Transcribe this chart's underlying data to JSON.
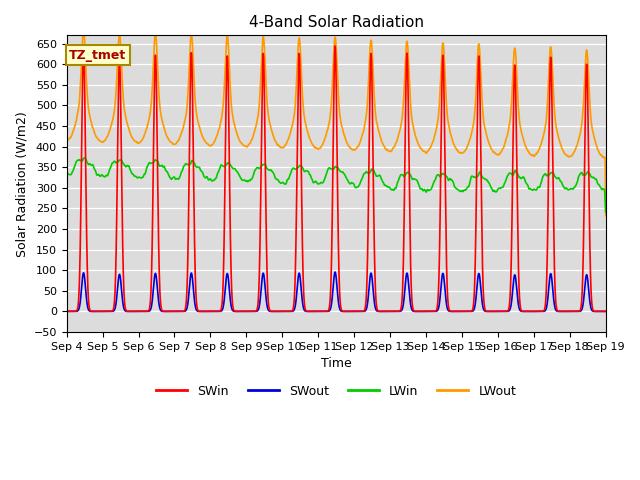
{
  "title": "4-Band Solar Radiation",
  "xlabel": "Time",
  "ylabel": "Solar Radiation (W/m2)",
  "ylim": [
    -50,
    670
  ],
  "yticks": [
    -50,
    0,
    50,
    100,
    150,
    200,
    250,
    300,
    350,
    400,
    450,
    500,
    550,
    600,
    650
  ],
  "bg_color": "#dcdcdc",
  "fig_color": "#ffffff",
  "line_colors": {
    "SWin": "#ff0000",
    "SWout": "#0000dd",
    "LWin": "#00cc00",
    "LWout": "#ff9900"
  },
  "line_widths": {
    "SWin": 1.2,
    "SWout": 1.2,
    "LWin": 1.2,
    "LWout": 1.2
  },
  "label_box": "TZ_tmet",
  "num_days": 15,
  "points_per_day": 288,
  "legend_entries": [
    "SWin",
    "SWout",
    "LWin",
    "LWout"
  ]
}
